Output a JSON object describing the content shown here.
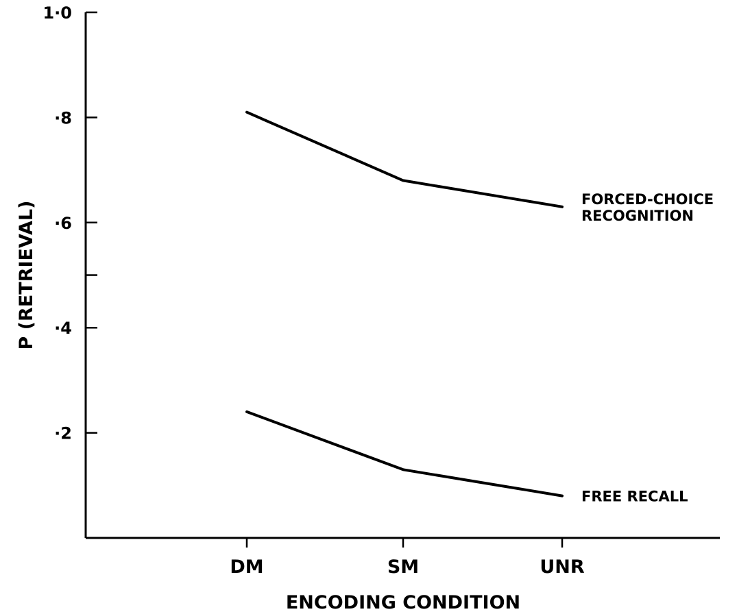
{
  "chart_data": {
    "type": "line",
    "title": "",
    "xlabel": "ENCODING CONDITION",
    "ylabel": "P (RETRIEVAL)",
    "categories": [
      "DM",
      "SM",
      "UNR"
    ],
    "ylim": [
      0,
      1.0
    ],
    "ytick_values": [
      0.2,
      0.4,
      0.6,
      0.8,
      1.0
    ],
    "ytick_labels": [
      "·2",
      "·4",
      "·6",
      "·8",
      "1·0"
    ],
    "yminor_ticks": [
      0.5
    ],
    "grid": false,
    "series": [
      {
        "name": "FORCED-CHOICE RECOGNITION",
        "label_lines": [
          "FORCED-CHOICE",
          "RECOGNITION"
        ],
        "values": [
          0.81,
          0.68,
          0.63
        ]
      },
      {
        "name": "FREE RECALL",
        "label_lines": [
          "FREE RECALL"
        ],
        "values": [
          0.24,
          0.13,
          0.08
        ]
      }
    ],
    "line_color": "#000000"
  }
}
